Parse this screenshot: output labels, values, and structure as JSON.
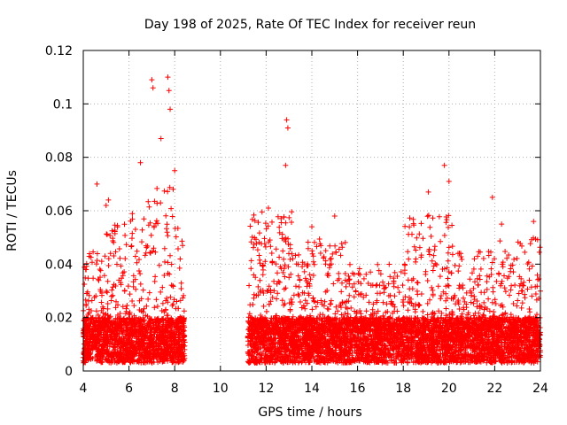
{
  "chart_data": {
    "type": "scatter",
    "title": "Day 198 of 2025, Rate Of TEC Index for receiver reun",
    "xlabel": "GPS time / hours",
    "ylabel": "ROTI / TECUs",
    "xlim": [
      4,
      24
    ],
    "ylim": [
      0,
      0.12
    ],
    "xticks": [
      4,
      6,
      8,
      10,
      12,
      14,
      16,
      18,
      20,
      22,
      24
    ],
    "yticks": [
      0,
      0.02,
      0.04,
      0.06,
      0.08,
      0.1,
      0.12
    ],
    "xtick_labels": [
      "4",
      "6",
      "8",
      "10",
      "12",
      "14",
      "16",
      "18",
      "20",
      "22",
      "24"
    ],
    "ytick_labels": [
      "0",
      "0.02",
      "0.04",
      "0.06",
      "0.08",
      "0.1",
      "0.12"
    ],
    "grid": true,
    "marker": "+",
    "color": "#ff0000",
    "data_segments": [
      {
        "x_start": 4.0,
        "x_end": 8.45,
        "description": "dense ROTI observations, mostly 0.003-0.02, peaks to ~0.11 near 7-7.8 h"
      },
      {
        "x_start": 11.2,
        "x_end": 24.0,
        "description": "dense ROTI observations, mostly 0.003-0.02, peaks ~0.095 near 12.9 h, ~0.077 near 19.8 h"
      }
    ],
    "peaks": [
      {
        "x": 4.6,
        "y": 0.07
      },
      {
        "x": 5.0,
        "y": 0.062
      },
      {
        "x": 5.1,
        "y": 0.064
      },
      {
        "x": 6.5,
        "y": 0.078
      },
      {
        "x": 7.0,
        "y": 0.109
      },
      {
        "x": 7.05,
        "y": 0.106
      },
      {
        "x": 7.4,
        "y": 0.087
      },
      {
        "x": 7.7,
        "y": 0.11
      },
      {
        "x": 7.75,
        "y": 0.105
      },
      {
        "x": 7.8,
        "y": 0.098
      },
      {
        "x": 8.0,
        "y": 0.075
      },
      {
        "x": 12.1,
        "y": 0.061
      },
      {
        "x": 12.9,
        "y": 0.094
      },
      {
        "x": 12.95,
        "y": 0.091
      },
      {
        "x": 12.85,
        "y": 0.077
      },
      {
        "x": 14.0,
        "y": 0.054
      },
      {
        "x": 15.0,
        "y": 0.058
      },
      {
        "x": 19.1,
        "y": 0.067
      },
      {
        "x": 19.8,
        "y": 0.077
      },
      {
        "x": 20.0,
        "y": 0.071
      },
      {
        "x": 21.9,
        "y": 0.065
      },
      {
        "x": 22.3,
        "y": 0.055
      },
      {
        "x": 23.7,
        "y": 0.056
      }
    ]
  }
}
